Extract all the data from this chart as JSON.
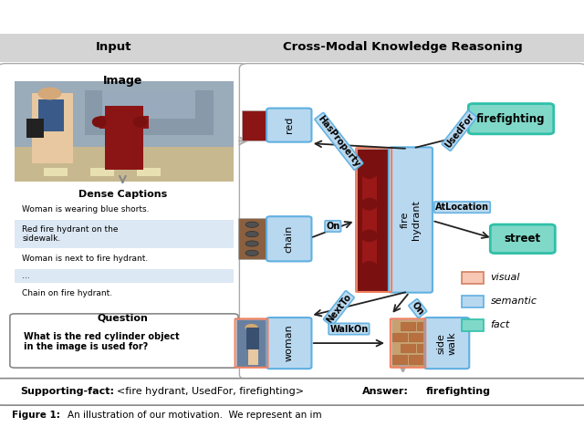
{
  "title_left": "Input",
  "title_left2": "Image",
  "title_right": "Cross-Modal Knowledge Reasoning",
  "header_bg": "#d8d8d8",
  "panel_bg": "#f0f0f0",
  "caption_title": "Dense Captions",
  "captions": [
    "Woman is wearing blue shorts.",
    "Red fire hydrant on the\nsidewalk.",
    "Woman is next to fire hydrant.",
    "...",
    "Chain on fire hydrant."
  ],
  "caption_bg_colors": [
    "#dce8f4",
    "#dce8f4",
    "#dce8f4",
    "#dce8f4",
    "#dce8f4"
  ],
  "question_title": "Question",
  "question_text": "What is the red cylinder object\nin the image is used for?",
  "visual_color": "#f9c8b4",
  "visual_border": "#f9c8b4",
  "semantic_color": "#b8d8f0",
  "semantic_border": "#60b0e0",
  "fact_color": "#80d8c8",
  "fact_border": "#30c0a8",
  "legend_items": [
    {
      "label": "visual",
      "color": "#f9c8b4",
      "border": "#f9c8b4"
    },
    {
      "label": "semantic",
      "color": "#b8d8f0",
      "border": "#60b0e0"
    },
    {
      "label": "fact",
      "color": "#80d8c8",
      "border": "#30c0a8"
    }
  ]
}
